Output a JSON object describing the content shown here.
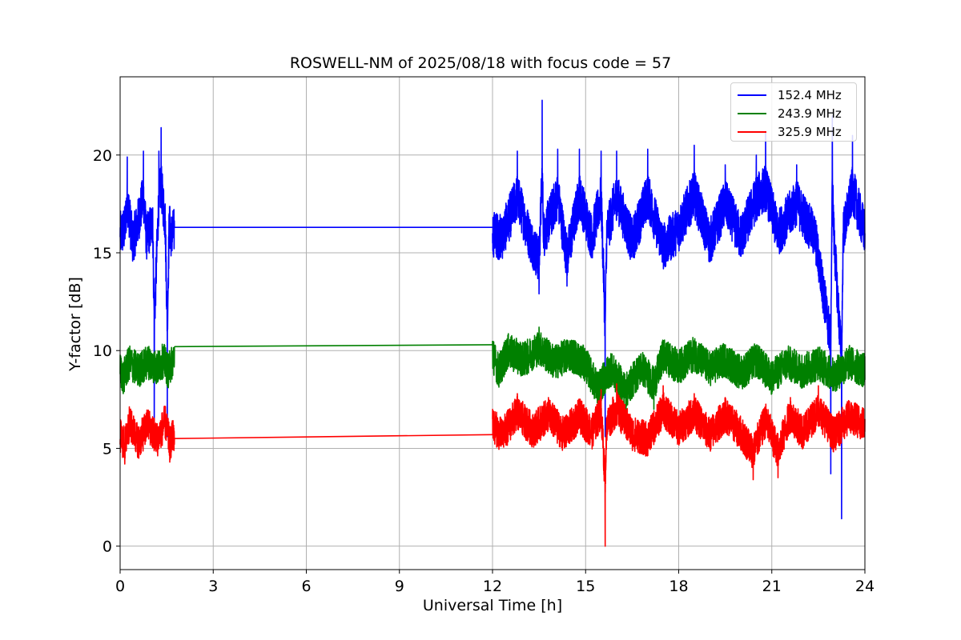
{
  "chart_data": {
    "type": "line",
    "title": "ROSWELL-NM of 2025/08/18 with focus code = 57",
    "xlabel": "Universal Time [h]",
    "ylabel": "Y-factor [dB]",
    "xlim": [
      0,
      24
    ],
    "ylim": [
      -1.2,
      24.0
    ],
    "xticks": [
      0,
      3,
      6,
      9,
      12,
      15,
      18,
      21,
      24
    ],
    "yticks": [
      0,
      5,
      10,
      15,
      20
    ],
    "grid": true,
    "legend_position": "top-right",
    "series": [
      {
        "name": "152.4 MHz",
        "color": "#0000ff",
        "segments": [
          {
            "x": [
              0.0,
              0.15,
              0.23,
              0.4,
              0.55,
              0.75,
              0.85,
              1.05,
              1.1,
              1.25,
              1.32,
              1.45,
              1.52,
              1.58,
              1.65,
              1.75
            ],
            "y": [
              15.8,
              16.5,
              19.9,
              15.0,
              16.9,
              20.2,
              15.5,
              17.3,
              5.8,
              20.2,
              21.4,
              17.5,
              5.6,
              17.0,
              15.8,
              16.3
            ]
          },
          {
            "x": [
              1.75,
              12.0
            ],
            "y": [
              16.3,
              16.3
            ]
          },
          {
            "x": [
              12.0,
              12.3,
              12.8,
              13.2,
              13.5,
              13.6,
              13.65,
              14.1,
              14.4,
              14.8,
              15.2,
              15.5,
              15.63,
              15.68,
              16.0,
              16.5,
              17.0,
              17.5,
              18.0,
              18.5,
              19.0,
              19.5,
              20.0,
              20.5,
              20.8,
              21.2,
              21.8,
              22.4,
              22.9,
              22.95,
              23.0,
              23.25,
              23.3,
              23.6,
              24.0
            ],
            "y": [
              16.0,
              15.5,
              20.2,
              15.5,
              12.9,
              22.8,
              15.8,
              20.3,
              13.3,
              20.3,
              15.5,
              20.2,
              5.6,
              16.0,
              20.2,
              15.0,
              20.3,
              14.5,
              16.5,
              20.5,
              15.0,
              19.5,
              15.5,
              20.0,
              21.2,
              16.0,
              19.5,
              15.5,
              3.7,
              22.0,
              15.8,
              1.4,
              16.0,
              21.0,
              16.0
            ]
          }
        ]
      },
      {
        "name": "243.9 MHz",
        "color": "#008000",
        "segments": [
          {
            "x": [
              0.0,
              0.1,
              0.3,
              0.6,
              0.9,
              1.2,
              1.4,
              1.55,
              1.75
            ],
            "y": [
              8.8,
              7.8,
              9.5,
              8.6,
              9.6,
              8.8,
              9.8,
              8.5,
              10.2
            ]
          },
          {
            "x": [
              1.75,
              12.0
            ],
            "y": [
              10.2,
              10.3
            ]
          },
          {
            "x": [
              12.0,
              12.2,
              12.5,
              13.0,
              13.5,
              14.0,
              14.5,
              15.0,
              15.4,
              15.8,
              16.3,
              16.8,
              17.2,
              17.5,
              18.0,
              18.5,
              19.0,
              19.5,
              20.0,
              20.5,
              21.0,
              21.5,
              22.0,
              22.5,
              23.0,
              23.5,
              24.0
            ],
            "y": [
              10.5,
              8.5,
              10.8,
              9.8,
              11.2,
              9.5,
              10.5,
              9.3,
              6.5,
              8.8,
              6.3,
              9.0,
              7.0,
              10.3,
              9.0,
              10.5,
              8.8,
              9.8,
              8.3,
              9.8,
              7.8,
              9.5,
              8.5,
              9.5,
              8.0,
              9.5,
              8.5
            ]
          }
        ]
      },
      {
        "name": "325.9 MHz",
        "color": "#ff0000",
        "segments": [
          {
            "x": [
              0.0,
              0.15,
              0.3,
              0.6,
              0.9,
              1.2,
              1.45,
              1.6,
              1.75
            ],
            "y": [
              5.2,
              4.2,
              6.6,
              4.5,
              6.5,
              4.8,
              6.8,
              4.3,
              5.5
            ]
          },
          {
            "x": [
              1.75,
              12.0
            ],
            "y": [
              5.5,
              5.7
            ]
          },
          {
            "x": [
              12.0,
              12.3,
              12.8,
              13.3,
              13.8,
              14.3,
              14.8,
              15.2,
              15.5,
              15.63,
              15.68,
              16.0,
              16.5,
              17.0,
              17.5,
              18.0,
              18.5,
              19.0,
              19.5,
              20.0,
              20.4,
              20.8,
              21.2,
              21.6,
              22.0,
              22.5,
              23.0,
              23.5,
              24.0
            ],
            "y": [
              6.5,
              5.2,
              7.8,
              5.8,
              7.6,
              5.3,
              7.5,
              5.6,
              8.0,
              0.0,
              6.5,
              8.3,
              5.5,
              4.8,
              8.2,
              6.0,
              7.8,
              5.3,
              7.6,
              5.5,
              3.4,
              7.0,
              3.5,
              7.6,
              5.5,
              8.2,
              5.3,
              7.4,
              6.5
            ]
          }
        ]
      }
    ]
  }
}
